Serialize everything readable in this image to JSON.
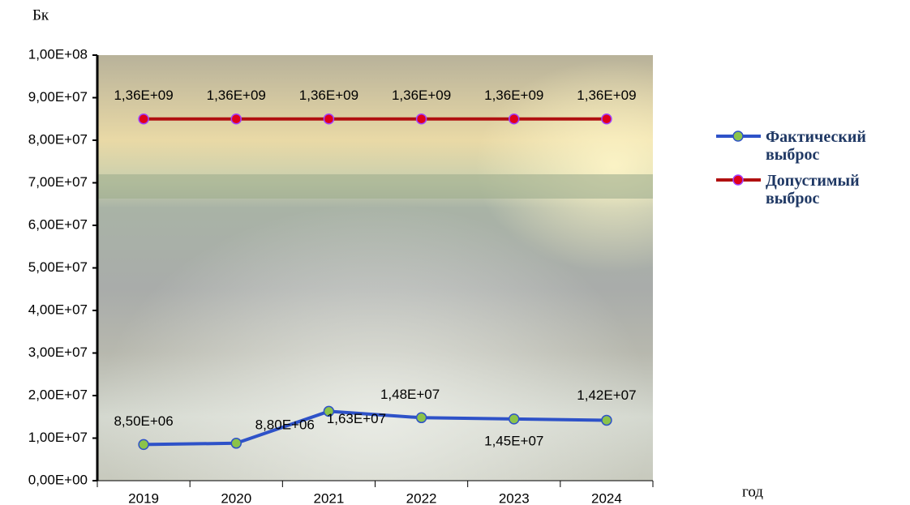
{
  "chart_data": {
    "type": "line",
    "y_label": "Бк",
    "x_label": "год",
    "categories": [
      "2019",
      "2020",
      "2021",
      "2022",
      "2023",
      "2024"
    ],
    "series": [
      {
        "name": "Фактический выброс",
        "color": "#2e52c8",
        "marker_color": "#8bc34a",
        "values": [
          8500000,
          8800000,
          16300000,
          14800000,
          14500000,
          14200000
        ],
        "value_labels": [
          "8,50E+06",
          "8,80E+06",
          "1,63E+07",
          "1,48E+07",
          "1,45E+07",
          "1,42E+07"
        ]
      },
      {
        "name": "Допустимый выброс",
        "color": "#b01010",
        "marker_color": "#e0001a",
        "axis": "y2",
        "values": [
          1360000000,
          1360000000,
          1360000000,
          1360000000,
          1360000000,
          1360000000
        ],
        "value_labels": [
          "1,36E+09",
          "1,36E+09",
          "1,36E+09",
          "1,36E+09",
          "1,36E+09",
          "1,36E+09"
        ]
      }
    ],
    "ylim": [
      0,
      100000000
    ],
    "yticks": [
      {
        "value": 0,
        "label": "0,00E+00"
      },
      {
        "value": 10000000,
        "label": "1,00E+07"
      },
      {
        "value": 20000000,
        "label": "2,00E+07"
      },
      {
        "value": 30000000,
        "label": "3,00E+07"
      },
      {
        "value": 40000000,
        "label": "4,00E+07"
      },
      {
        "value": 50000000,
        "label": "5,00E+07"
      },
      {
        "value": 60000000,
        "label": "6,00E+07"
      },
      {
        "value": 70000000,
        "label": "7,00E+07"
      },
      {
        "value": 80000000,
        "label": "8,00E+07"
      },
      {
        "value": 90000000,
        "label": "9,00E+07"
      },
      {
        "value": 100000000,
        "label": "1,00E+08"
      }
    ],
    "y2lim": [
      0,
      1600000000
    ],
    "legend": "right"
  }
}
